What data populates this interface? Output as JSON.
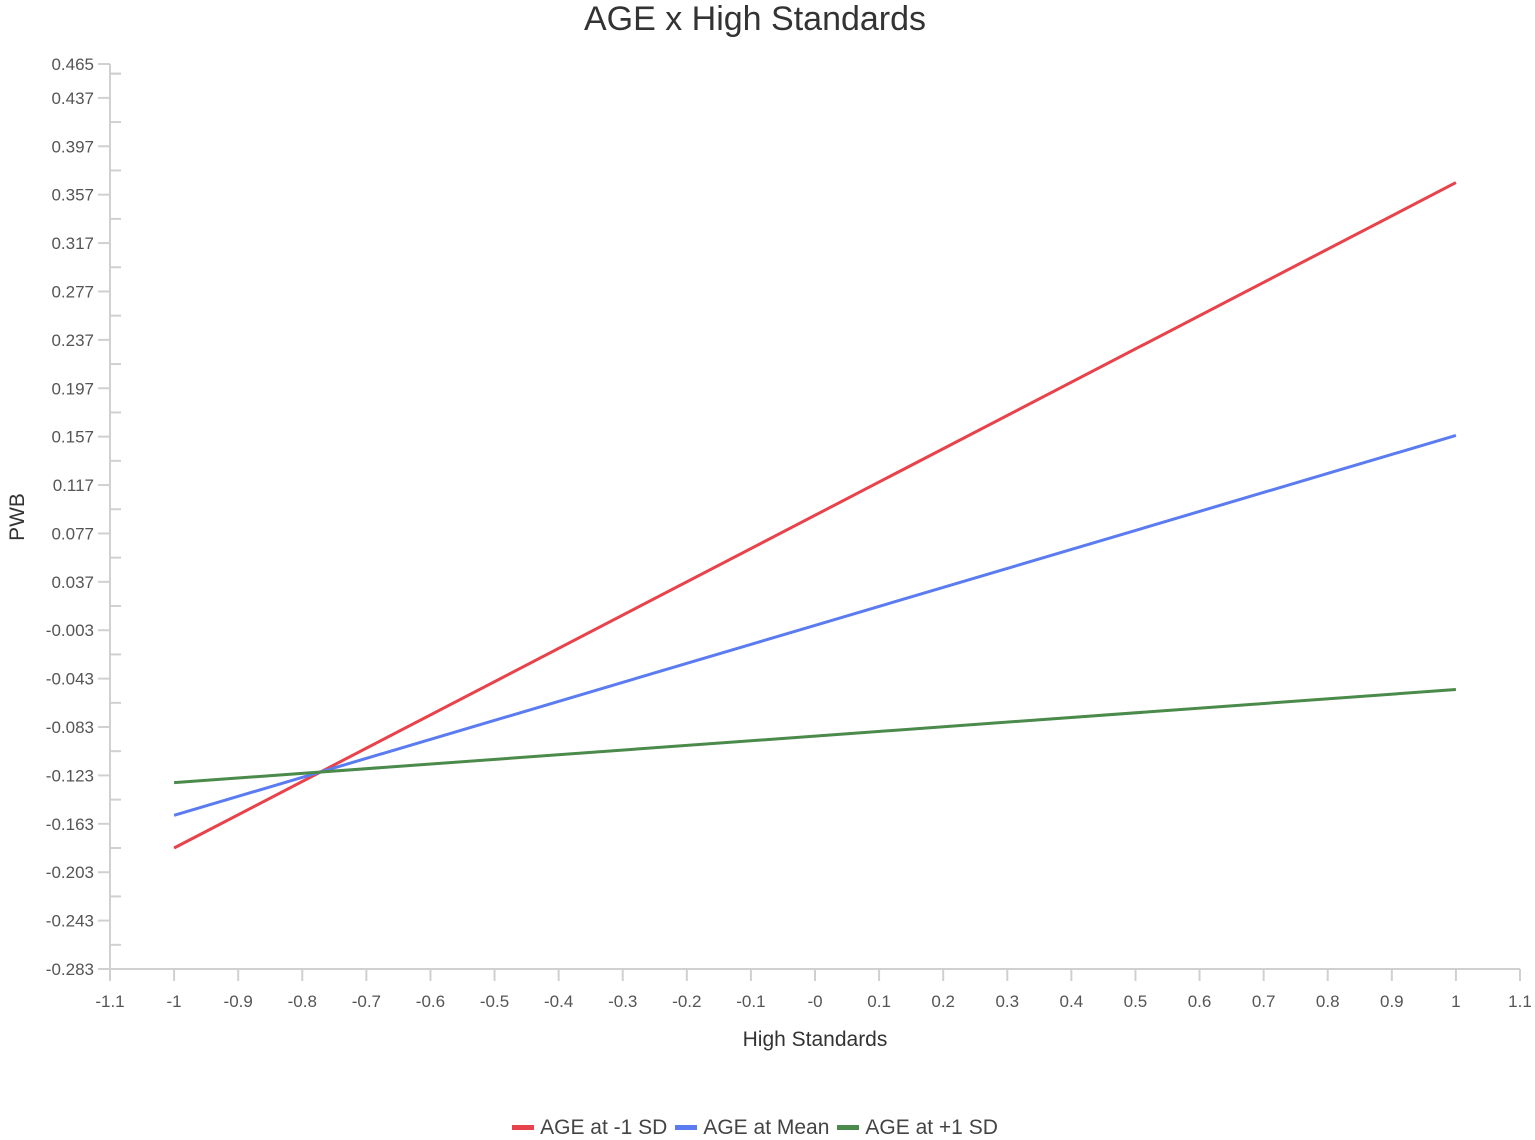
{
  "chart_data": {
    "type": "line",
    "title": "AGE x High Standards",
    "xlabel": "High Standards",
    "ylabel": "PWB",
    "xlim": [
      -1.1,
      1.1
    ],
    "ylim": [
      -0.283,
      0.465
    ],
    "x_ticks": [
      "-1.1",
      "-1",
      "-0.9",
      "-0.8",
      "-0.7",
      "-0.6",
      "-0.5",
      "-0.4",
      "-0.3",
      "-0.2",
      "-0.1",
      "-0",
      "0.1",
      "0.2",
      "0.3",
      "0.4",
      "0.5",
      "0.6",
      "0.7",
      "0.8",
      "0.9",
      "1",
      "1.1"
    ],
    "y_ticks": [
      "0.465",
      "0.437",
      "0.397",
      "0.357",
      "0.317",
      "0.277",
      "0.237",
      "0.197",
      "0.157",
      "0.117",
      "0.077",
      "0.037",
      "-0.003",
      "-0.043",
      "-0.083",
      "-0.123",
      "-0.163",
      "-0.203",
      "-0.243",
      "-0.283"
    ],
    "grid": false,
    "legend_position": "bottom",
    "x": [
      -1,
      1
    ],
    "series": [
      {
        "name": "AGE at -1 SD",
        "color": "#e8424a",
        "values": [
          -0.183,
          0.367
        ]
      },
      {
        "name": "AGE at Mean",
        "color": "#5b7bf0",
        "values": [
          -0.156,
          0.158
        ]
      },
      {
        "name": "AGE at +1 SD",
        "color": "#4a8a4a",
        "values": [
          -0.129,
          -0.052
        ]
      }
    ]
  }
}
